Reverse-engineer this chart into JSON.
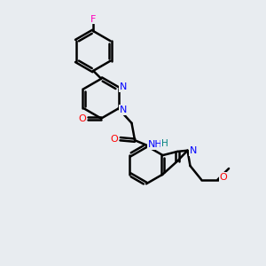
{
  "background_color": "#e8ecf0",
  "bond_color": "#000000",
  "bond_width": 1.8,
  "atom_colors": {
    "N": "#0000ff",
    "O": "#ff0000",
    "F": "#ff00bb",
    "C": "#000000",
    "H": "#008080"
  },
  "figsize": [
    3.0,
    3.0
  ],
  "dpi": 100,
  "xlim": [
    0,
    10
  ],
  "ylim": [
    0,
    10
  ]
}
